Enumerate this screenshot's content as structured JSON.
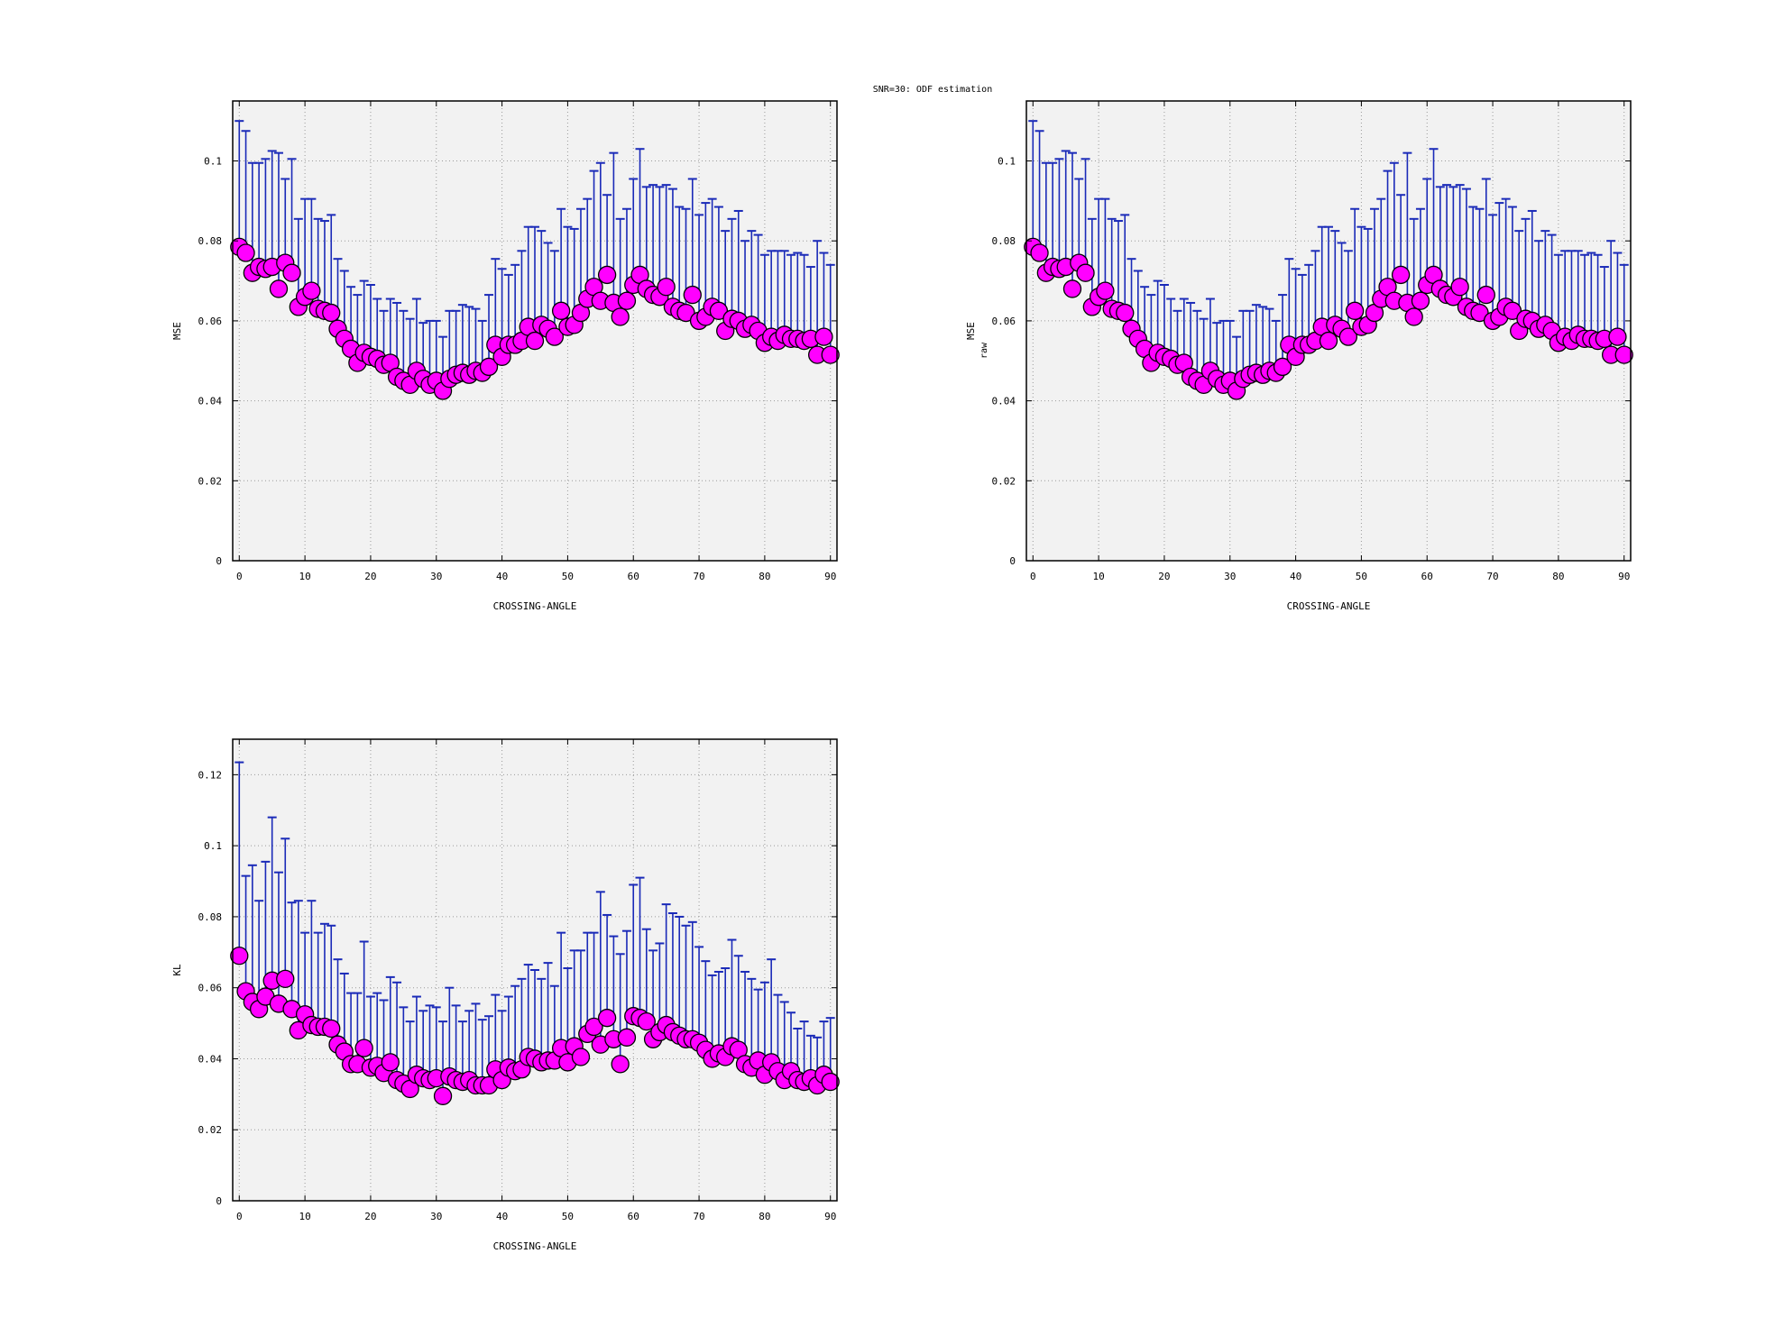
{
  "figure_title": "SNR=30: ODF estimation",
  "colors": {
    "panel_bg": "#f2f2f2",
    "errorbar": "#1a2ab8",
    "marker_fill": "#ff00ff",
    "marker_edge": "#000000",
    "grid": "#9a9a9a"
  },
  "chart_data": [
    {
      "type": "scatter",
      "xlabel": "CROSSING-ANGLE",
      "ylabel": "MSE",
      "ylabel_sub": "",
      "xlim": [
        -1,
        91
      ],
      "ylim": [
        0,
        0.115
      ],
      "xticks": [
        0,
        10,
        20,
        30,
        40,
        50,
        60,
        70,
        80,
        90
      ],
      "xtick_labels": [
        "0",
        "10",
        "20",
        "30",
        "40",
        "50",
        "60",
        "70",
        "80",
        "90"
      ],
      "yticks": [
        0,
        0.02,
        0.04,
        0.06,
        0.08,
        0.1
      ],
      "ytick_labels": [
        "0",
        "0.02",
        "0.04",
        "0.06",
        "0.08",
        "0.1"
      ],
      "grid": true,
      "series": [
        {
          "x": [
            0,
            1,
            2,
            3,
            4,
            5,
            6,
            7,
            8,
            9,
            10,
            11,
            12,
            13,
            14,
            15,
            16,
            17,
            18,
            19,
            20,
            21,
            22,
            23,
            24,
            25,
            26,
            27,
            28,
            29,
            30,
            31,
            32,
            33,
            34,
            35,
            36,
            37,
            38,
            39,
            40,
            41,
            42,
            43,
            44,
            45,
            46,
            47,
            48,
            49,
            50,
            51,
            52,
            53,
            54,
            55,
            56,
            57,
            58,
            59,
            60,
            61,
            62,
            63,
            64,
            65,
            66,
            67,
            68,
            69,
            70,
            71,
            72,
            73,
            74,
            75,
            76,
            77,
            78,
            79,
            80,
            81,
            82,
            83,
            84,
            85,
            86,
            87,
            88,
            89,
            90
          ],
          "y": [
            0.0785,
            0.077,
            0.072,
            0.0735,
            0.073,
            0.0735,
            0.068,
            0.0745,
            0.072,
            0.0635,
            0.066,
            0.0675,
            0.063,
            0.0625,
            0.062,
            0.058,
            0.0555,
            0.053,
            0.0495,
            0.052,
            0.051,
            0.0505,
            0.049,
            0.0495,
            0.046,
            0.045,
            0.044,
            0.0475,
            0.0455,
            0.044,
            0.045,
            0.0425,
            0.0455,
            0.0465,
            0.047,
            0.0465,
            0.0475,
            0.047,
            0.0485,
            0.054,
            0.051,
            0.054,
            0.054,
            0.055,
            0.0585,
            0.055,
            0.059,
            0.058,
            0.056,
            0.0625,
            0.0585,
            0.059,
            0.062,
            0.0655,
            0.0685,
            0.065,
            0.0715,
            0.0645,
            0.061,
            0.065,
            0.069,
            0.0715,
            0.068,
            0.0665,
            0.066,
            0.0685,
            0.0635,
            0.0625,
            0.062,
            0.0665,
            0.06,
            0.061,
            0.0635,
            0.0625,
            0.0575,
            0.0605,
            0.06,
            0.058,
            0.059,
            0.0575,
            0.0545,
            0.056,
            0.055,
            0.0565,
            0.0555,
            0.0555,
            0.055,
            0.0555,
            0.0515,
            0.056,
            0.0515
          ],
          "yerr_upper": [
            0.11,
            0.1075,
            0.0995,
            0.0995,
            0.1005,
            0.1025,
            0.102,
            0.0955,
            0.1005,
            0.0855,
            0.0905,
            0.0905,
            0.0855,
            0.085,
            0.0865,
            0.0755,
            0.0725,
            0.0685,
            0.0665,
            0.07,
            0.069,
            0.0655,
            0.0625,
            0.0655,
            0.0645,
            0.0625,
            0.0605,
            0.0655,
            0.0595,
            0.06,
            0.06,
            0.056,
            0.0625,
            0.0625,
            0.064,
            0.0635,
            0.063,
            0.06,
            0.0665,
            0.0755,
            0.073,
            0.0715,
            0.074,
            0.0775,
            0.0835,
            0.0835,
            0.0825,
            0.0795,
            0.0775,
            0.088,
            0.0835,
            0.083,
            0.088,
            0.0905,
            0.0975,
            0.0995,
            0.0915,
            0.102,
            0.0855,
            0.088,
            0.0955,
            0.103,
            0.0935,
            0.094,
            0.0935,
            0.094,
            0.093,
            0.0885,
            0.088,
            0.0955,
            0.0865,
            0.0895,
            0.0905,
            0.0885,
            0.0825,
            0.0855,
            0.0875,
            0.08,
            0.0825,
            0.0815,
            0.0765,
            0.0775,
            0.0775,
            0.0775,
            0.0765,
            0.077,
            0.0765,
            0.0735,
            0.08,
            0.077,
            0.074
          ]
        }
      ]
    },
    {
      "type": "scatter",
      "xlabel": "CROSSING-ANGLE",
      "ylabel": "MSE",
      "ylabel_sub": "raw",
      "xlim": [
        -1,
        91
      ],
      "ylim": [
        0,
        0.115
      ],
      "xticks": [
        0,
        10,
        20,
        30,
        40,
        50,
        60,
        70,
        80,
        90
      ],
      "xtick_labels": [
        "0",
        "10",
        "20",
        "30",
        "40",
        "50",
        "60",
        "70",
        "80",
        "90"
      ],
      "yticks": [
        0,
        0.02,
        0.04,
        0.06,
        0.08,
        0.1
      ],
      "ytick_labels": [
        "0",
        "0.02",
        "0.04",
        "0.06",
        "0.08",
        "0.1"
      ],
      "grid": true,
      "series": [
        {
          "x": [
            0,
            1,
            2,
            3,
            4,
            5,
            6,
            7,
            8,
            9,
            10,
            11,
            12,
            13,
            14,
            15,
            16,
            17,
            18,
            19,
            20,
            21,
            22,
            23,
            24,
            25,
            26,
            27,
            28,
            29,
            30,
            31,
            32,
            33,
            34,
            35,
            36,
            37,
            38,
            39,
            40,
            41,
            42,
            43,
            44,
            45,
            46,
            47,
            48,
            49,
            50,
            51,
            52,
            53,
            54,
            55,
            56,
            57,
            58,
            59,
            60,
            61,
            62,
            63,
            64,
            65,
            66,
            67,
            68,
            69,
            70,
            71,
            72,
            73,
            74,
            75,
            76,
            77,
            78,
            79,
            80,
            81,
            82,
            83,
            84,
            85,
            86,
            87,
            88,
            89,
            90
          ],
          "y": [
            0.0785,
            0.077,
            0.072,
            0.0735,
            0.073,
            0.0735,
            0.068,
            0.0745,
            0.072,
            0.0635,
            0.066,
            0.0675,
            0.063,
            0.0625,
            0.062,
            0.058,
            0.0555,
            0.053,
            0.0495,
            0.052,
            0.051,
            0.0505,
            0.049,
            0.0495,
            0.046,
            0.045,
            0.044,
            0.0475,
            0.0455,
            0.044,
            0.045,
            0.0425,
            0.0455,
            0.0465,
            0.047,
            0.0465,
            0.0475,
            0.047,
            0.0485,
            0.054,
            0.051,
            0.054,
            0.054,
            0.055,
            0.0585,
            0.055,
            0.059,
            0.058,
            0.056,
            0.0625,
            0.0585,
            0.059,
            0.062,
            0.0655,
            0.0685,
            0.065,
            0.0715,
            0.0645,
            0.061,
            0.065,
            0.069,
            0.0715,
            0.068,
            0.0665,
            0.066,
            0.0685,
            0.0635,
            0.0625,
            0.062,
            0.0665,
            0.06,
            0.061,
            0.0635,
            0.0625,
            0.0575,
            0.0605,
            0.06,
            0.058,
            0.059,
            0.0575,
            0.0545,
            0.056,
            0.055,
            0.0565,
            0.0555,
            0.0555,
            0.055,
            0.0555,
            0.0515,
            0.056,
            0.0515
          ],
          "yerr_upper": [
            0.11,
            0.1075,
            0.0995,
            0.0995,
            0.1005,
            0.1025,
            0.102,
            0.0955,
            0.1005,
            0.0855,
            0.0905,
            0.0905,
            0.0855,
            0.085,
            0.0865,
            0.0755,
            0.0725,
            0.0685,
            0.0665,
            0.07,
            0.069,
            0.0655,
            0.0625,
            0.0655,
            0.0645,
            0.0625,
            0.0605,
            0.0655,
            0.0595,
            0.06,
            0.06,
            0.056,
            0.0625,
            0.0625,
            0.064,
            0.0635,
            0.063,
            0.06,
            0.0665,
            0.0755,
            0.073,
            0.0715,
            0.074,
            0.0775,
            0.0835,
            0.0835,
            0.0825,
            0.0795,
            0.0775,
            0.088,
            0.0835,
            0.083,
            0.088,
            0.0905,
            0.0975,
            0.0995,
            0.0915,
            0.102,
            0.0855,
            0.088,
            0.0955,
            0.103,
            0.0935,
            0.094,
            0.0935,
            0.094,
            0.093,
            0.0885,
            0.088,
            0.0955,
            0.0865,
            0.0895,
            0.0905,
            0.0885,
            0.0825,
            0.0855,
            0.0875,
            0.08,
            0.0825,
            0.0815,
            0.0765,
            0.0775,
            0.0775,
            0.0775,
            0.0765,
            0.077,
            0.0765,
            0.0735,
            0.08,
            0.077,
            0.074
          ]
        }
      ]
    },
    {
      "type": "scatter",
      "xlabel": "CROSSING-ANGLE",
      "ylabel": "KL",
      "ylabel_sub": "",
      "xlim": [
        -1,
        91
      ],
      "ylim": [
        0,
        0.13
      ],
      "xticks": [
        0,
        10,
        20,
        30,
        40,
        50,
        60,
        70,
        80,
        90
      ],
      "xtick_labels": [
        "0",
        "10",
        "20",
        "30",
        "40",
        "50",
        "60",
        "70",
        "80",
        "90"
      ],
      "yticks": [
        0,
        0.02,
        0.04,
        0.06,
        0.08,
        0.1,
        0.12
      ],
      "ytick_labels": [
        "0",
        "0.02",
        "0.04",
        "0.06",
        "0.08",
        "0.1",
        "0.12"
      ],
      "grid": true,
      "series": [
        {
          "x": [
            0,
            1,
            2,
            3,
            4,
            5,
            6,
            7,
            8,
            9,
            10,
            11,
            12,
            13,
            14,
            15,
            16,
            17,
            18,
            19,
            20,
            21,
            22,
            23,
            24,
            25,
            26,
            27,
            28,
            29,
            30,
            31,
            32,
            33,
            34,
            35,
            36,
            37,
            38,
            39,
            40,
            41,
            42,
            43,
            44,
            45,
            46,
            47,
            48,
            49,
            50,
            51,
            52,
            53,
            54,
            55,
            56,
            57,
            58,
            59,
            60,
            61,
            62,
            63,
            64,
            65,
            66,
            67,
            68,
            69,
            70,
            71,
            72,
            73,
            74,
            75,
            76,
            77,
            78,
            79,
            80,
            81,
            82,
            83,
            84,
            85,
            86,
            87,
            88,
            89,
            90
          ],
          "y": [
            0.069,
            0.059,
            0.056,
            0.054,
            0.0575,
            0.062,
            0.0555,
            0.0625,
            0.054,
            0.048,
            0.0525,
            0.0495,
            0.049,
            0.049,
            0.0485,
            0.044,
            0.042,
            0.0385,
            0.0385,
            0.043,
            0.0375,
            0.038,
            0.036,
            0.039,
            0.034,
            0.033,
            0.0315,
            0.0355,
            0.0345,
            0.034,
            0.0345,
            0.0295,
            0.035,
            0.034,
            0.0335,
            0.034,
            0.0325,
            0.0325,
            0.0325,
            0.037,
            0.034,
            0.0375,
            0.0365,
            0.037,
            0.0405,
            0.04,
            0.039,
            0.0395,
            0.0395,
            0.043,
            0.039,
            0.0435,
            0.0405,
            0.047,
            0.049,
            0.044,
            0.0515,
            0.0455,
            0.0385,
            0.046,
            0.052,
            0.0515,
            0.0505,
            0.0455,
            0.0475,
            0.0495,
            0.0475,
            0.0465,
            0.0455,
            0.0455,
            0.0445,
            0.0425,
            0.04,
            0.0415,
            0.0405,
            0.0435,
            0.0425,
            0.0385,
            0.0375,
            0.0395,
            0.0355,
            0.039,
            0.0365,
            0.034,
            0.0365,
            0.034,
            0.0335,
            0.0345,
            0.0325,
            0.0355,
            0.0335
          ],
          "yerr_upper": [
            0.1235,
            0.0915,
            0.0945,
            0.0845,
            0.0955,
            0.108,
            0.0925,
            0.102,
            0.084,
            0.0845,
            0.0755,
            0.0845,
            0.0755,
            0.078,
            0.0775,
            0.068,
            0.064,
            0.0585,
            0.0585,
            0.073,
            0.0575,
            0.0585,
            0.0565,
            0.063,
            0.0615,
            0.0545,
            0.0505,
            0.0575,
            0.0535,
            0.055,
            0.0545,
            0.0505,
            0.06,
            0.055,
            0.0505,
            0.0535,
            0.0555,
            0.051,
            0.052,
            0.058,
            0.0535,
            0.0575,
            0.0605,
            0.0625,
            0.0665,
            0.065,
            0.0625,
            0.067,
            0.0605,
            0.0755,
            0.0655,
            0.0705,
            0.0705,
            0.0755,
            0.0755,
            0.087,
            0.0805,
            0.0745,
            0.0695,
            0.076,
            0.089,
            0.091,
            0.0765,
            0.0705,
            0.0725,
            0.0835,
            0.081,
            0.08,
            0.0775,
            0.0785,
            0.0715,
            0.0675,
            0.0635,
            0.0645,
            0.0655,
            0.0735,
            0.069,
            0.0645,
            0.0625,
            0.0595,
            0.0615,
            0.068,
            0.058,
            0.056,
            0.053,
            0.0485,
            0.0505,
            0.0465,
            0.046,
            0.0505,
            0.0515
          ]
        }
      ]
    }
  ]
}
